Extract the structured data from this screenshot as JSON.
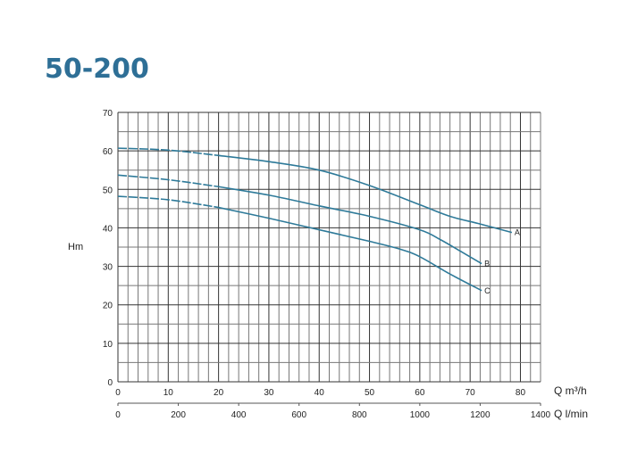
{
  "chart_data": {
    "type": "line",
    "title": "50-200",
    "xlabel": "Q m³/h",
    "xlabel2": "Q l/min",
    "ylabel": "Hm",
    "xlim": [
      0,
      84
    ],
    "ylim": [
      0,
      70
    ],
    "x_ticks": [
      0,
      10,
      20,
      30,
      40,
      50,
      60,
      70,
      80
    ],
    "x2_ticks": [
      0,
      200,
      400,
      600,
      800,
      1000,
      1200,
      1400
    ],
    "y_ticks": [
      0,
      10,
      20,
      30,
      40,
      50,
      60,
      70
    ],
    "grid": true,
    "line_color": "#2e7a99",
    "dashed_until_x": 20,
    "series": [
      {
        "name": "A",
        "x": [
          0,
          10,
          20,
          30,
          40,
          50,
          60,
          66,
          72,
          78.3
        ],
        "y": [
          60.7,
          60.2,
          58.8,
          57.2,
          55,
          51,
          46,
          43,
          41,
          38.8
        ]
      },
      {
        "name": "B",
        "x": [
          0,
          10,
          20,
          30,
          40,
          50,
          60,
          64,
          68,
          72.3
        ],
        "y": [
          53.7,
          52.5,
          50.7,
          48.5,
          45.7,
          43,
          39.5,
          37,
          34,
          30.7
        ]
      },
      {
        "name": "C",
        "x": [
          0,
          10,
          20,
          30,
          40,
          50,
          56,
          60,
          66,
          72.3
        ],
        "y": [
          48.2,
          47.3,
          45.3,
          42.5,
          39.5,
          36.5,
          34.5,
          32.5,
          28,
          23.7
        ]
      }
    ]
  }
}
